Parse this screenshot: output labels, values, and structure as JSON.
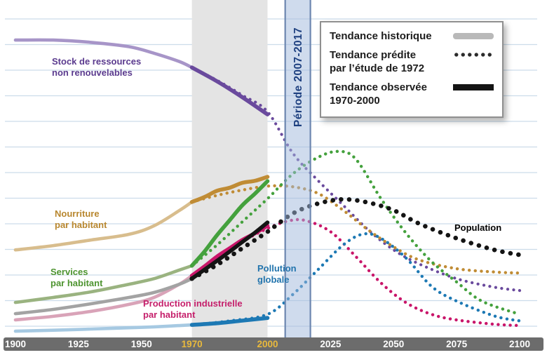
{
  "page": {
    "background": "#ffffff"
  },
  "legend": {
    "items": [
      {
        "id": "historical",
        "label": "Tendance historique",
        "style": "solid",
        "swatch_color": "#b9b9b9"
      },
      {
        "id": "predicted",
        "label": "Tendance prédite\npar l’étude de 1972",
        "style": "dotted",
        "swatch_color": "#2b2b2b"
      },
      {
        "id": "observed",
        "label": "Tendance observée\n1970-2000",
        "style": "solid",
        "swatch_color": "#141414"
      }
    ]
  },
  "chart_data": {
    "type": "line",
    "title": "",
    "x_range": [
      1900,
      2100
    ],
    "x_ticks": [
      {
        "label": "1900",
        "year": 1900,
        "highlight": false
      },
      {
        "label": "1925",
        "year": 1925,
        "highlight": false
      },
      {
        "label": "1950",
        "year": 1950,
        "highlight": false
      },
      {
        "label": "1970",
        "year": 1970,
        "highlight": true
      },
      {
        "label": "2000",
        "year": 2000,
        "highlight": true
      },
      {
        "label": "2025",
        "year": 2025,
        "highlight": false
      },
      {
        "label": "2050",
        "year": 2050,
        "highlight": false
      },
      {
        "label": "2075",
        "year": 2075,
        "highlight": false
      },
      {
        "label": "2100",
        "year": 2100,
        "highlight": false
      }
    ],
    "y_axis": {
      "visible": false,
      "scale": "relative 0-100 (no labels shown)"
    },
    "gridline_color": "#ccdcea",
    "axis_bar_color": "#6c6c6c",
    "tick_highlight_color": "#e9b93c",
    "bands": [
      {
        "name": "fenetre-observee-1970-2000",
        "from": 1970,
        "to": 2000,
        "fill": "#e4e4e4",
        "label": ""
      },
      {
        "name": "periode-2007-2017",
        "from": 2007,
        "to": 2017,
        "fill": "#9fb8dc",
        "border": "#6d87b0",
        "label": "Période 2007-2017",
        "label_color": "#1e4080"
      }
    ],
    "series": [
      {
        "name": "Stock de ressources non renouvelables",
        "label": "Stock de ressources\nnon renouvelables",
        "color": "#6a4a9d",
        "historical_color": "#a795c8",
        "label_color": "#5a3a8e",
        "dot_size": 4.2,
        "dot_gap": 8.5,
        "historical": [
          [
            1900,
            90
          ],
          [
            1915,
            90
          ],
          [
            1930,
            89.3
          ],
          [
            1945,
            88
          ],
          [
            1955,
            86
          ],
          [
            1965,
            83.5
          ],
          [
            1970,
            81.7
          ]
        ],
        "observed": [
          [
            1970,
            81.7
          ],
          [
            1980,
            77.5
          ],
          [
            1990,
            72.7
          ],
          [
            2000,
            67.5
          ]
        ],
        "predicted": [
          [
            1970,
            81.7
          ],
          [
            1980,
            77.8
          ],
          [
            1990,
            73.3
          ],
          [
            2000,
            68.3
          ],
          [
            2010,
            55.8
          ],
          [
            2020,
            47.5
          ],
          [
            2030,
            40
          ],
          [
            2040,
            32.5
          ],
          [
            2050,
            26.5
          ],
          [
            2060,
            22.3
          ],
          [
            2075,
            17.8
          ],
          [
            2090,
            15.2
          ],
          [
            2100,
            14.2
          ]
        ]
      },
      {
        "name": "Nourriture par habitant",
        "label": "Nourriture\npar habitant",
        "color": "#c08c35",
        "historical_color": "#d8bd8d",
        "label_color": "#b8872f",
        "dot_size": 4.4,
        "dot_gap": 8.5,
        "historical": [
          [
            1900,
            26.5
          ],
          [
            1915,
            27.8
          ],
          [
            1930,
            29.5
          ],
          [
            1945,
            31.2
          ],
          [
            1955,
            33.8
          ],
          [
            1965,
            38.4
          ],
          [
            1970,
            41
          ]
        ],
        "observed": [
          [
            1970,
            41
          ],
          [
            1975,
            42.5
          ],
          [
            1980,
            44.4
          ],
          [
            1985,
            45.3
          ],
          [
            1990,
            46.8
          ],
          [
            1995,
            47.4
          ],
          [
            2000,
            48.6
          ]
        ],
        "predicted": [
          [
            1970,
            41
          ],
          [
            1980,
            43
          ],
          [
            1990,
            44.6
          ],
          [
            2000,
            45.8
          ],
          [
            2010,
            45.6
          ],
          [
            2020,
            43.6
          ],
          [
            2030,
            38.5
          ],
          [
            2040,
            32.5
          ],
          [
            2050,
            27.4
          ],
          [
            2060,
            23.5
          ],
          [
            2075,
            20.8
          ],
          [
            2090,
            19.8
          ],
          [
            2100,
            19.5
          ]
        ]
      },
      {
        "name": "Services par habitant",
        "label": "Services\npar habitant",
        "color": "#44a13d",
        "historical_color": "#9ab380",
        "label_color": "#4e9430",
        "dot_size": 4.4,
        "dot_gap": 8.5,
        "historical": [
          [
            1900,
            10.6
          ],
          [
            1915,
            12.1
          ],
          [
            1930,
            13.8
          ],
          [
            1945,
            16.1
          ],
          [
            1955,
            17.8
          ],
          [
            1965,
            20.4
          ],
          [
            1970,
            21.7
          ]
        ],
        "observed": [
          [
            1970,
            21.7
          ],
          [
            1975,
            26
          ],
          [
            1980,
            31
          ],
          [
            1985,
            35.5
          ],
          [
            1990,
            40
          ],
          [
            1995,
            43.5
          ],
          [
            2000,
            47.3
          ]
        ],
        "predicted": [
          [
            1970,
            21.7
          ],
          [
            1980,
            28
          ],
          [
            1990,
            35
          ],
          [
            2000,
            42
          ],
          [
            2010,
            49.5
          ],
          [
            2020,
            54.5
          ],
          [
            2028,
            56.3
          ],
          [
            2035,
            54
          ],
          [
            2045,
            42
          ],
          [
            2055,
            31.5
          ],
          [
            2065,
            23
          ],
          [
            2075,
            16.8
          ],
          [
            2085,
            11
          ],
          [
            2100,
            7
          ]
        ]
      },
      {
        "name": "Production industrielle par habitant",
        "label": "Production industrielle\npar habitant",
        "color": "#c9166a",
        "historical_color": "#d9a3b8",
        "label_color": "#c51f6b",
        "dot_size": 4.4,
        "dot_gap": 8.5,
        "historical": [
          [
            1900,
            5.3
          ],
          [
            1915,
            6.4
          ],
          [
            1930,
            7.9
          ],
          [
            1945,
            10
          ],
          [
            1955,
            12.1
          ],
          [
            1965,
            16.1
          ],
          [
            1970,
            18.7
          ]
        ],
        "observed": [
          [
            1970,
            18.7
          ],
          [
            1975,
            21.5
          ],
          [
            1980,
            24.5
          ],
          [
            1985,
            27
          ],
          [
            1990,
            29.5
          ],
          [
            1995,
            31.5
          ],
          [
            2000,
            33.8
          ]
        ],
        "predicted": [
          [
            1970,
            18.7
          ],
          [
            1980,
            24
          ],
          [
            1990,
            29
          ],
          [
            2000,
            33
          ],
          [
            2008,
            35.2
          ],
          [
            2015,
            35.4
          ],
          [
            2025,
            32
          ],
          [
            2035,
            24.5
          ],
          [
            2045,
            16.5
          ],
          [
            2055,
            10.5
          ],
          [
            2065,
            7
          ],
          [
            2075,
            5.3
          ],
          [
            2090,
            4
          ],
          [
            2100,
            3.6
          ]
        ]
      },
      {
        "name": "Pollution globale",
        "label": "Pollution\nglobale",
        "color": "#1d79b4",
        "historical_color": "#a6c9e2",
        "label_color": "#2274ad",
        "dot_size": 4.4,
        "dot_gap": 8.5,
        "historical": [
          [
            1900,
            1.9
          ],
          [
            1920,
            2.3
          ],
          [
            1940,
            2.8
          ],
          [
            1955,
            3.2
          ],
          [
            1970,
            3.8
          ]
        ],
        "observed": [
          [
            1970,
            3.8
          ],
          [
            1980,
            4.3
          ],
          [
            1990,
            5.1
          ],
          [
            2000,
            5.9
          ]
        ],
        "predicted": [
          [
            1970,
            3.8
          ],
          [
            1985,
            5
          ],
          [
            2000,
            7
          ],
          [
            2010,
            13
          ],
          [
            2020,
            20.5
          ],
          [
            2030,
            28
          ],
          [
            2038,
            31.3
          ],
          [
            2045,
            30
          ],
          [
            2055,
            24
          ],
          [
            2065,
            15.5
          ],
          [
            2075,
            11
          ],
          [
            2090,
            6.5
          ],
          [
            2100,
            5
          ]
        ]
      },
      {
        "name": "Population",
        "label": "Population",
        "color": "#141414",
        "historical_color": "#a3a3a3",
        "label_color": "#000000",
        "dot_size": 6.5,
        "dot_gap": 11.5,
        "historical": [
          [
            1900,
            7.2
          ],
          [
            1915,
            8.5
          ],
          [
            1930,
            10.2
          ],
          [
            1945,
            12.1
          ],
          [
            1955,
            13.6
          ],
          [
            1965,
            16.1
          ],
          [
            1970,
            17.8
          ]
        ],
        "observed": [
          [
            1970,
            17.8
          ],
          [
            1975,
            20.5
          ],
          [
            1980,
            23.2
          ],
          [
            1985,
            26
          ],
          [
            1990,
            28.9
          ],
          [
            1995,
            31.7
          ],
          [
            2000,
            34.8
          ]
        ],
        "predicted": [
          [
            1970,
            17.8
          ],
          [
            1980,
            22
          ],
          [
            1990,
            27
          ],
          [
            2000,
            32
          ],
          [
            2010,
            37.5
          ],
          [
            2020,
            40.5
          ],
          [
            2030,
            41.8
          ],
          [
            2040,
            40.8
          ],
          [
            2050,
            38.5
          ],
          [
            2060,
            34.5
          ],
          [
            2075,
            30
          ],
          [
            2090,
            26.5
          ],
          [
            2100,
            25
          ]
        ]
      }
    ]
  }
}
